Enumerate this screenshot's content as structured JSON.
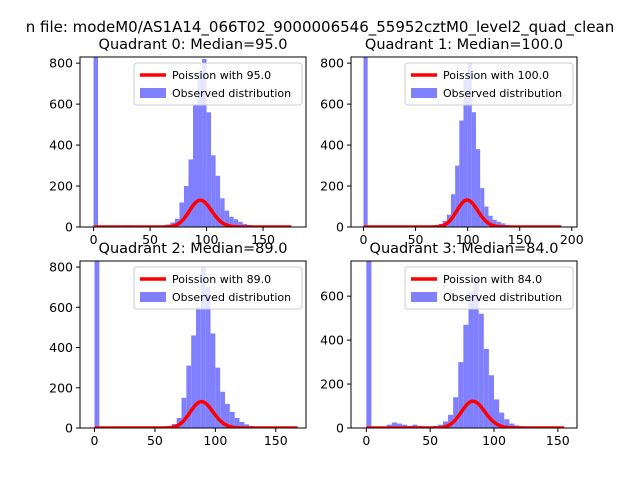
{
  "suptitle": "n file: modeM0/AS1A14_066T02_9000006546_55952cztM0_level2_quad_clean",
  "colors": {
    "bar": "#8080ff",
    "fit": "#ff0000"
  },
  "chart_data": [
    {
      "type": "bar",
      "title": "Quadrant 0: Median=95.0",
      "xlim": [
        -12,
        188
      ],
      "ylim": [
        0,
        830
      ],
      "xticks": [
        0,
        50,
        100,
        150
      ],
      "yticks": [
        0,
        200,
        400,
        600,
        800
      ],
      "bin_width": 4,
      "bins": [
        {
          "x": 0,
          "h": 830
        },
        {
          "x": 28,
          "h": 8
        },
        {
          "x": 60,
          "h": 8
        },
        {
          "x": 64,
          "h": 12
        },
        {
          "x": 68,
          "h": 22
        },
        {
          "x": 72,
          "h": 40
        },
        {
          "x": 76,
          "h": 120
        },
        {
          "x": 80,
          "h": 200
        },
        {
          "x": 84,
          "h": 330
        },
        {
          "x": 88,
          "h": 600
        },
        {
          "x": 92,
          "h": 760
        },
        {
          "x": 96,
          "h": 820
        },
        {
          "x": 100,
          "h": 560
        },
        {
          "x": 104,
          "h": 350
        },
        {
          "x": 108,
          "h": 250
        },
        {
          "x": 112,
          "h": 140
        },
        {
          "x": 116,
          "h": 80
        },
        {
          "x": 120,
          "h": 50
        },
        {
          "x": 124,
          "h": 38
        },
        {
          "x": 128,
          "h": 25
        },
        {
          "x": 132,
          "h": 15
        },
        {
          "x": 136,
          "h": 10
        },
        {
          "x": 140,
          "h": 6
        },
        {
          "x": 144,
          "h": 4
        },
        {
          "x": 148,
          "h": 3
        }
      ],
      "fit": {
        "mu": 95.0,
        "x_min": 0,
        "x_max": 175,
        "scale": 3200
      },
      "legend": [
        "Poission with 95.0",
        "Observed distribution"
      ]
    },
    {
      "type": "bar",
      "title": "Quadrant 1: Median=100.0",
      "xlim": [
        -12,
        205
      ],
      "ylim": [
        0,
        830
      ],
      "xticks": [
        0,
        50,
        100,
        150,
        200
      ],
      "yticks": [
        0,
        200,
        400,
        600,
        800
      ],
      "bin_width": 4,
      "bins": [
        {
          "x": 0,
          "h": 830
        },
        {
          "x": 32,
          "h": 5
        },
        {
          "x": 64,
          "h": 5
        },
        {
          "x": 68,
          "h": 10
        },
        {
          "x": 72,
          "h": 15
        },
        {
          "x": 76,
          "h": 30
        },
        {
          "x": 80,
          "h": 60
        },
        {
          "x": 84,
          "h": 160
        },
        {
          "x": 88,
          "h": 300
        },
        {
          "x": 92,
          "h": 520
        },
        {
          "x": 96,
          "h": 720
        },
        {
          "x": 100,
          "h": 800
        },
        {
          "x": 104,
          "h": 560
        },
        {
          "x": 108,
          "h": 380
        },
        {
          "x": 112,
          "h": 190
        },
        {
          "x": 116,
          "h": 100
        },
        {
          "x": 120,
          "h": 55
        },
        {
          "x": 124,
          "h": 35
        },
        {
          "x": 128,
          "h": 25
        },
        {
          "x": 132,
          "h": 18
        },
        {
          "x": 136,
          "h": 10
        },
        {
          "x": 140,
          "h": 6
        },
        {
          "x": 144,
          "h": 4
        },
        {
          "x": 148,
          "h": 3
        }
      ],
      "fit": {
        "mu": 100.0,
        "x_min": 0,
        "x_max": 190,
        "scale": 3300
      },
      "legend": [
        "Poission with 100.0",
        "Observed distribution"
      ]
    },
    {
      "type": "bar",
      "title": "Quadrant 2: Median=89.0",
      "xlim": [
        -12,
        175
      ],
      "ylim": [
        0,
        830
      ],
      "xticks": [
        0,
        50,
        100,
        150
      ],
      "yticks": [
        0,
        200,
        400,
        600,
        800
      ],
      "bin_width": 4,
      "bins": [
        {
          "x": 0,
          "h": 830
        },
        {
          "x": 28,
          "h": 5
        },
        {
          "x": 56,
          "h": 5
        },
        {
          "x": 60,
          "h": 10
        },
        {
          "x": 64,
          "h": 20
        },
        {
          "x": 68,
          "h": 50
        },
        {
          "x": 72,
          "h": 150
        },
        {
          "x": 76,
          "h": 310
        },
        {
          "x": 80,
          "h": 460
        },
        {
          "x": 84,
          "h": 600
        },
        {
          "x": 88,
          "h": 800
        },
        {
          "x": 92,
          "h": 700
        },
        {
          "x": 96,
          "h": 470
        },
        {
          "x": 100,
          "h": 300
        },
        {
          "x": 104,
          "h": 180
        },
        {
          "x": 108,
          "h": 120
        },
        {
          "x": 112,
          "h": 80
        },
        {
          "x": 116,
          "h": 50
        },
        {
          "x": 120,
          "h": 30
        },
        {
          "x": 124,
          "h": 18
        },
        {
          "x": 128,
          "h": 10
        },
        {
          "x": 132,
          "h": 6
        },
        {
          "x": 136,
          "h": 4
        },
        {
          "x": 140,
          "h": 3
        }
      ],
      "fit": {
        "mu": 89.0,
        "x_min": 0,
        "x_max": 168,
        "scale": 3100
      },
      "legend": [
        "Poission with 89.0",
        "Observed distribution"
      ]
    },
    {
      "type": "bar",
      "title": "Quadrant 3: Median=84.0",
      "xlim": [
        -12,
        165
      ],
      "ylim": [
        0,
        760
      ],
      "xticks": [
        0,
        50,
        100,
        150
      ],
      "yticks": [
        0,
        200,
        400,
        600
      ],
      "bin_width": 4,
      "bins": [
        {
          "x": 0,
          "h": 760
        },
        {
          "x": 16,
          "h": 15
        },
        {
          "x": 20,
          "h": 25
        },
        {
          "x": 24,
          "h": 20
        },
        {
          "x": 28,
          "h": 15
        },
        {
          "x": 32,
          "h": 10
        },
        {
          "x": 36,
          "h": 15
        },
        {
          "x": 40,
          "h": 10
        },
        {
          "x": 44,
          "h": 8
        },
        {
          "x": 48,
          "h": 5
        },
        {
          "x": 52,
          "h": 10
        },
        {
          "x": 56,
          "h": 15
        },
        {
          "x": 60,
          "h": 30
        },
        {
          "x": 64,
          "h": 60
        },
        {
          "x": 68,
          "h": 140
        },
        {
          "x": 72,
          "h": 300
        },
        {
          "x": 76,
          "h": 470
        },
        {
          "x": 80,
          "h": 620
        },
        {
          "x": 84,
          "h": 680
        },
        {
          "x": 88,
          "h": 520
        },
        {
          "x": 92,
          "h": 360
        },
        {
          "x": 96,
          "h": 240
        },
        {
          "x": 100,
          "h": 130
        },
        {
          "x": 104,
          "h": 70
        },
        {
          "x": 108,
          "h": 40
        },
        {
          "x": 112,
          "h": 20
        },
        {
          "x": 116,
          "h": 12
        },
        {
          "x": 120,
          "h": 8
        },
        {
          "x": 124,
          "h": 5
        }
      ],
      "fit": {
        "mu": 84.0,
        "x_min": 0,
        "x_max": 155,
        "scale": 2800
      },
      "legend": [
        "Poission with 84.0",
        "Observed distribution"
      ]
    }
  ]
}
